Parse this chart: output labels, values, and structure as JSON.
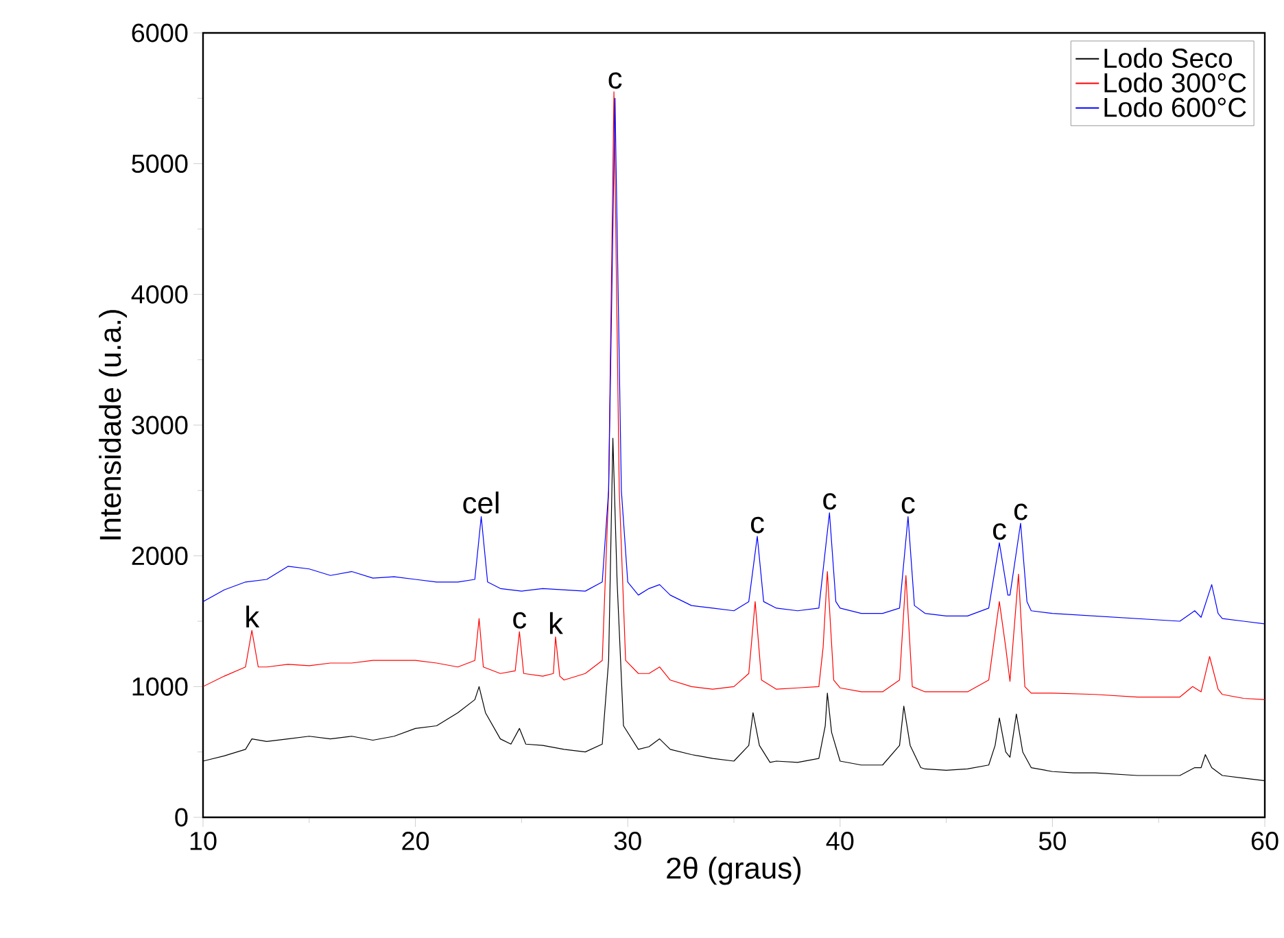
{
  "chart_data": {
    "type": "line",
    "xlabel": "2θ (graus)",
    "ylabel": "Intensidade (u.a.)",
    "xlim": [
      10,
      60
    ],
    "xticks": [
      10,
      20,
      30,
      40,
      50,
      60
    ],
    "ylim": [
      0,
      6000
    ],
    "yticks": [
      0,
      1000,
      2000,
      3000,
      4000,
      5000,
      6000
    ],
    "grid": false,
    "legend": "top right",
    "marker": "none",
    "line_style": "solid",
    "series": [
      {
        "name": "Lodo Seco",
        "color": "#000000",
        "x": [
          10,
          11,
          12,
          12.3,
          13,
          14,
          15,
          16,
          17,
          18,
          19,
          20,
          21,
          22,
          22.8,
          23,
          23.3,
          24,
          24.5,
          24.9,
          25.2,
          26,
          27,
          28,
          28.8,
          29.1,
          29.3,
          29.5,
          29.8,
          30.5,
          31,
          31.5,
          32,
          33,
          34,
          35,
          35.7,
          35.9,
          36.2,
          36.7,
          37,
          38,
          39,
          39.3,
          39.4,
          39.6,
          40,
          41,
          42,
          42.8,
          43,
          43.3,
          43.8,
          44,
          45,
          46,
          47,
          47.3,
          47.5,
          47.8,
          48,
          48.3,
          48.6,
          49,
          50,
          51,
          52,
          53,
          54,
          55,
          56,
          56.7,
          57,
          57.2,
          57.5,
          58,
          59,
          60
        ],
        "values": [
          430,
          470,
          520,
          600,
          580,
          600,
          620,
          600,
          620,
          590,
          620,
          680,
          700,
          800,
          900,
          1000,
          800,
          600,
          560,
          680,
          560,
          550,
          520,
          500,
          560,
          1200,
          2900,
          1800,
          700,
          520,
          540,
          600,
          520,
          480,
          450,
          430,
          550,
          800,
          550,
          420,
          430,
          420,
          450,
          700,
          950,
          650,
          430,
          400,
          400,
          550,
          850,
          550,
          380,
          370,
          360,
          370,
          400,
          550,
          760,
          500,
          460,
          790,
          500,
          380,
          350,
          340,
          340,
          330,
          320,
          320,
          320,
          380,
          380,
          480,
          380,
          320,
          300,
          280
        ]
      },
      {
        "name": "Lodo 300°C",
        "color": "#ff0000",
        "x": [
          10,
          11,
          12,
          12.3,
          12.6,
          13,
          14,
          15,
          16,
          17,
          18,
          19,
          20,
          21,
          22,
          22.8,
          23,
          23.2,
          24,
          24.7,
          24.9,
          25.1,
          26,
          26.5,
          26.6,
          26.8,
          27,
          28,
          28.8,
          29.1,
          29.35,
          29.6,
          29.9,
          30.5,
          31,
          31.5,
          32,
          33,
          34,
          35,
          35.7,
          36,
          36.3,
          37,
          38,
          39,
          39.2,
          39.4,
          39.7,
          40,
          41,
          42,
          42.8,
          43.1,
          43.4,
          44,
          45,
          46,
          47,
          47.5,
          47.8,
          48,
          48.4,
          48.7,
          49,
          50,
          52,
          54,
          56,
          56.6,
          57,
          57.4,
          57.8,
          58,
          59,
          60
        ],
        "values": [
          1000,
          1080,
          1150,
          1430,
          1150,
          1150,
          1170,
          1160,
          1180,
          1180,
          1200,
          1200,
          1200,
          1180,
          1150,
          1200,
          1520,
          1150,
          1100,
          1120,
          1420,
          1100,
          1080,
          1100,
          1380,
          1080,
          1050,
          1100,
          1200,
          2500,
          5550,
          2500,
          1200,
          1100,
          1100,
          1150,
          1050,
          1000,
          980,
          1000,
          1100,
          1650,
          1050,
          980,
          990,
          1000,
          1300,
          1880,
          1050,
          990,
          960,
          960,
          1050,
          1850,
          1000,
          960,
          960,
          960,
          1050,
          1650,
          1300,
          1040,
          1860,
          1000,
          950,
          950,
          940,
          920,
          920,
          1000,
          960,
          1230,
          980,
          940,
          910,
          900
        ]
      },
      {
        "name": "Lodo 600°C",
        "color": "#0000ff",
        "x": [
          10,
          11,
          12,
          13,
          14,
          15,
          16,
          17,
          18,
          19,
          20,
          21,
          22,
          22.8,
          23.1,
          23.4,
          24,
          25,
          26,
          27,
          28,
          28.8,
          29.1,
          29.4,
          29.7,
          30,
          30.5,
          31,
          31.5,
          32,
          33,
          34,
          35,
          35.7,
          36.1,
          36.4,
          37,
          38,
          39,
          39.5,
          39.8,
          40,
          41,
          42,
          42.8,
          43.2,
          43.5,
          44,
          45,
          46,
          47,
          47.5,
          47.9,
          48,
          48.5,
          48.8,
          49,
          50,
          52,
          54,
          56,
          56.7,
          57,
          57.5,
          57.8,
          58,
          59,
          60
        ],
        "values": [
          1650,
          1740,
          1800,
          1820,
          1920,
          1900,
          1850,
          1880,
          1830,
          1840,
          1820,
          1800,
          1800,
          1820,
          2300,
          1800,
          1750,
          1730,
          1750,
          1740,
          1730,
          1800,
          2500,
          5500,
          2500,
          1800,
          1700,
          1750,
          1780,
          1700,
          1620,
          1600,
          1580,
          1650,
          2150,
          1650,
          1600,
          1580,
          1600,
          2330,
          1650,
          1600,
          1560,
          1560,
          1600,
          2300,
          1620,
          1560,
          1540,
          1540,
          1600,
          2100,
          1700,
          1700,
          2250,
          1650,
          1580,
          1560,
          1540,
          1520,
          1500,
          1580,
          1530,
          1780,
          1560,
          1520,
          1500,
          1480
        ]
      }
    ],
    "annotations": [
      {
        "text": "k",
        "x": 12.3,
        "y": 1430
      },
      {
        "text": "cel",
        "x": 23.1,
        "y": 2300
      },
      {
        "text": "c",
        "x": 24.9,
        "y": 1420
      },
      {
        "text": "k",
        "x": 26.6,
        "y": 1380
      },
      {
        "text": "c",
        "x": 29.4,
        "y": 5550
      },
      {
        "text": "c",
        "x": 36.1,
        "y": 2150
      },
      {
        "text": "c",
        "x": 39.5,
        "y": 2330
      },
      {
        "text": "c",
        "x": 43.2,
        "y": 2300
      },
      {
        "text": "c",
        "x": 47.5,
        "y": 2100
      },
      {
        "text": "c",
        "x": 48.5,
        "y": 2250
      }
    ]
  }
}
